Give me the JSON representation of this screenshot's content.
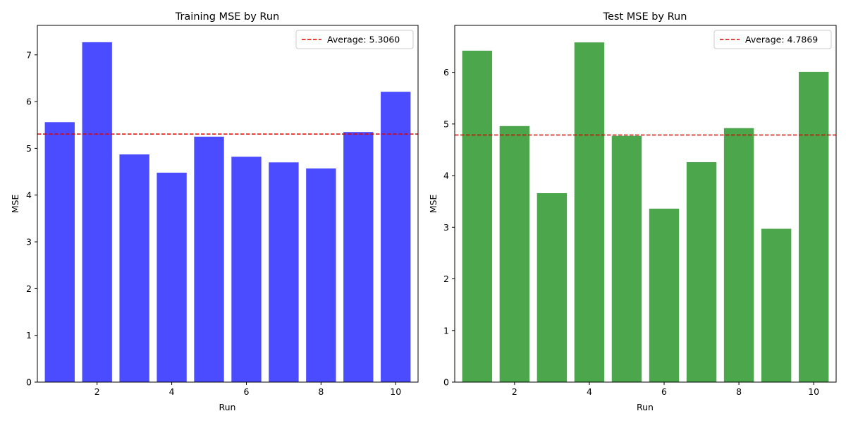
{
  "chart_data": [
    {
      "type": "bar",
      "title": "Training MSE by Run",
      "xlabel": "Run",
      "ylabel": "MSE",
      "x": [
        1,
        2,
        3,
        4,
        5,
        6,
        7,
        8,
        9,
        10
      ],
      "values": [
        5.56,
        7.27,
        4.87,
        4.48,
        5.25,
        4.82,
        4.7,
        4.57,
        5.35,
        6.21
      ],
      "xticks": [
        2,
        4,
        6,
        8,
        10
      ],
      "xlim": [
        0.4,
        10.6
      ],
      "ylim": [
        0,
        7.63
      ],
      "yticks": [
        0,
        1,
        2,
        3,
        4,
        5,
        6,
        7
      ],
      "bar_color": "#4b4bff",
      "average": {
        "value": 5.306,
        "label": "Average: 5.3060",
        "color": "#e00000"
      },
      "legend_position": "upper right",
      "grid": false
    },
    {
      "type": "bar",
      "title": "Test MSE by Run",
      "xlabel": "Run",
      "ylabel": "MSE",
      "x": [
        1,
        2,
        3,
        4,
        5,
        6,
        7,
        8,
        9,
        10
      ],
      "values": [
        6.42,
        4.96,
        3.66,
        6.58,
        4.77,
        3.36,
        4.26,
        4.92,
        2.97,
        6.01
      ],
      "xticks": [
        2,
        4,
        6,
        8,
        10
      ],
      "xlim": [
        0.4,
        10.6
      ],
      "ylim": [
        0,
        6.91
      ],
      "yticks": [
        0,
        1,
        2,
        3,
        4,
        5,
        6
      ],
      "bar_color": "#4ca64c",
      "average": {
        "value": 4.7869,
        "label": "Average: 4.7869",
        "color": "#e00000"
      },
      "legend_position": "upper right",
      "grid": false
    }
  ]
}
